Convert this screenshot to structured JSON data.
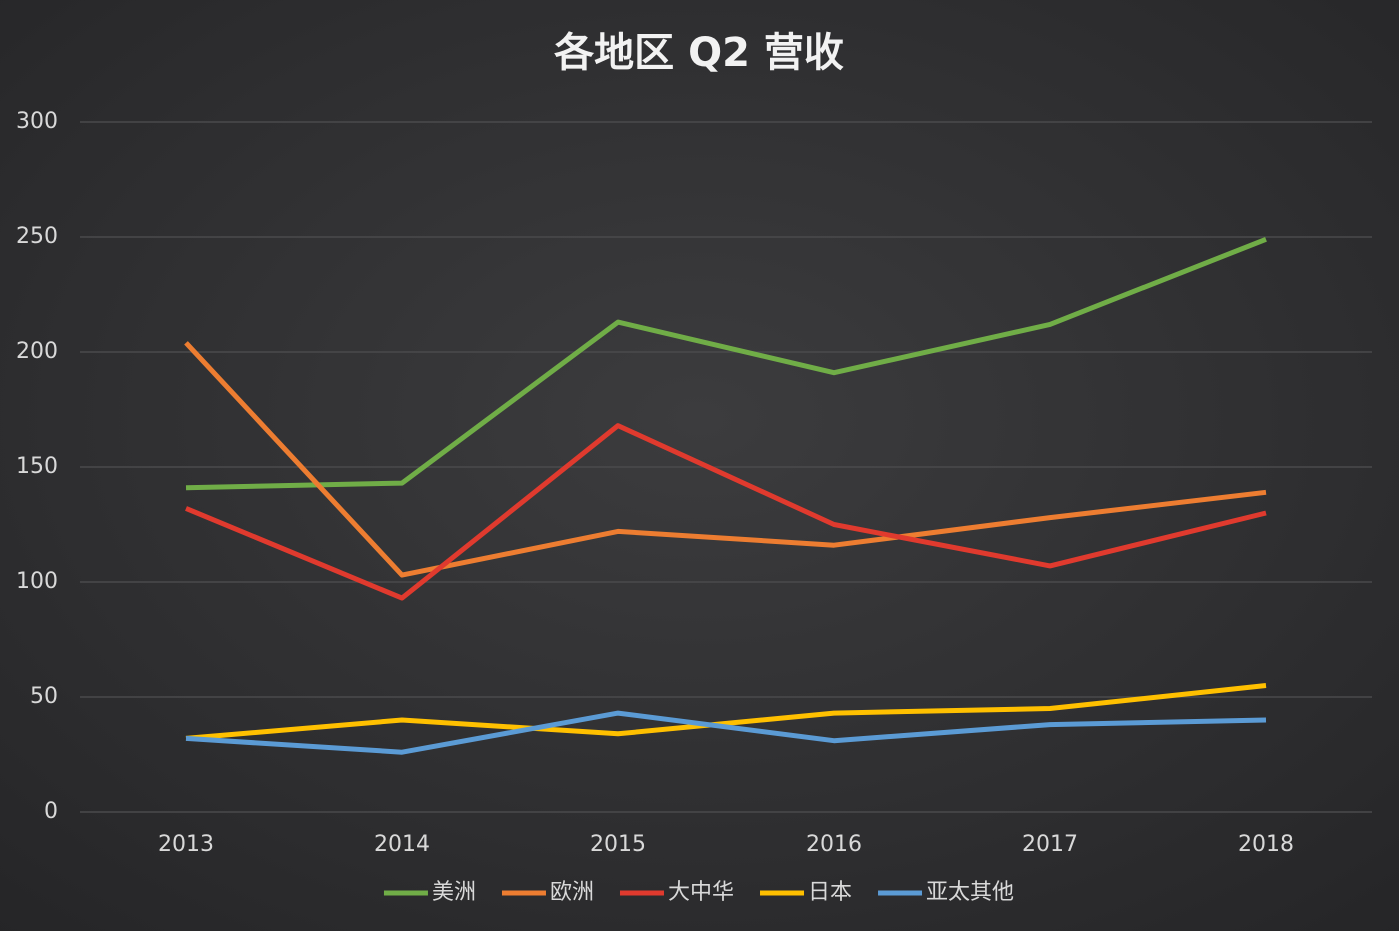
{
  "chart_data": {
    "type": "line",
    "title": "各地区 Q2 营收",
    "categories": [
      "2013",
      "2014",
      "2015",
      "2016",
      "2017",
      "2018"
    ],
    "series": [
      {
        "name": "美洲",
        "color": "#70ad47",
        "values": [
          141,
          143,
          213,
          191,
          212,
          249
        ]
      },
      {
        "name": "欧洲",
        "color": "#ed7d31",
        "values": [
          204,
          103,
          122,
          116,
          128,
          139
        ]
      },
      {
        "name": "大中华",
        "color": "#e03a2e",
        "values": [
          132,
          93,
          168,
          125,
          107,
          130
        ]
      },
      {
        "name": "日本",
        "color": "#ffc000",
        "values": [
          32,
          40,
          34,
          43,
          45,
          55
        ]
      },
      {
        "name": "亚太其他",
        "color": "#5b9bd5",
        "values": [
          32,
          26,
          43,
          31,
          38,
          40
        ]
      }
    ],
    "ylim": [
      0,
      300
    ],
    "yticks": [
      0,
      50,
      100,
      150,
      200,
      250,
      300
    ],
    "grid": true,
    "legend": "bottom"
  }
}
